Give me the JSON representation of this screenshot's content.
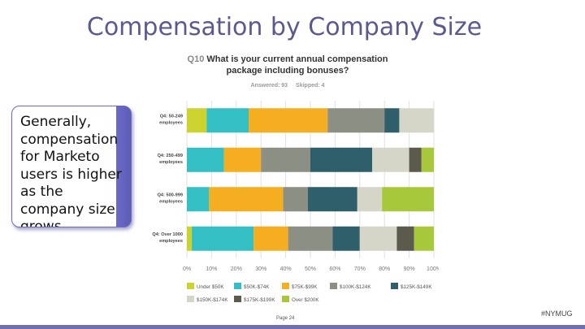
{
  "slide": {
    "title": "Compensation by Company Size",
    "callout": "Generally, compensation for Marketo users is higher as the company size grows.",
    "page": "Page 24",
    "hashtag": "#NYMUG"
  },
  "question": {
    "number": "Q10",
    "text": "What is your current annual compensation package including bonuses?",
    "answered": "Answered: 93",
    "skipped": "Skipped: 4"
  },
  "chart_data": {
    "type": "bar",
    "orientation": "horizontal",
    "stacked": "100%",
    "categories": [
      "Q4: 50-249 employees",
      "Q4: 250-499 employees",
      "Q4: 500-999 employees",
      "Q4: Over 1000 employees"
    ],
    "xlim": [
      0,
      100
    ],
    "xticks": [
      "0%",
      "10%",
      "20%",
      "30%",
      "40%",
      "50%",
      "60%",
      "70%",
      "80%",
      "90%",
      "100%"
    ],
    "grid": true,
    "legend_position": "bottom",
    "series": [
      {
        "name": "Under $50K",
        "color": "#ccd22e",
        "values": [
          8,
          0,
          0,
          2
        ]
      },
      {
        "name": "$50K-$74K",
        "color": "#33bfc3",
        "values": [
          17,
          15,
          9,
          25
        ]
      },
      {
        "name": "$75K-$99K",
        "color": "#f5ae1f",
        "values": [
          32,
          15,
          30,
          14
        ]
      },
      {
        "name": "$100K-$124K",
        "color": "#8c8f84",
        "values": [
          23,
          20,
          10,
          18
        ]
      },
      {
        "name": "$125K-$149K",
        "color": "#2f5f6b",
        "values": [
          6,
          25,
          20,
          11
        ]
      },
      {
        "name": "$150K-$174K",
        "color": "#d5d5c8",
        "values": [
          14,
          15,
          10,
          15
        ]
      },
      {
        "name": "$175K-$199K",
        "color": "#5c5a4c",
        "values": [
          0,
          5,
          0,
          7
        ]
      },
      {
        "name": "Over $200K",
        "color": "#a8c83c",
        "values": [
          0,
          5,
          21,
          8
        ]
      }
    ]
  }
}
